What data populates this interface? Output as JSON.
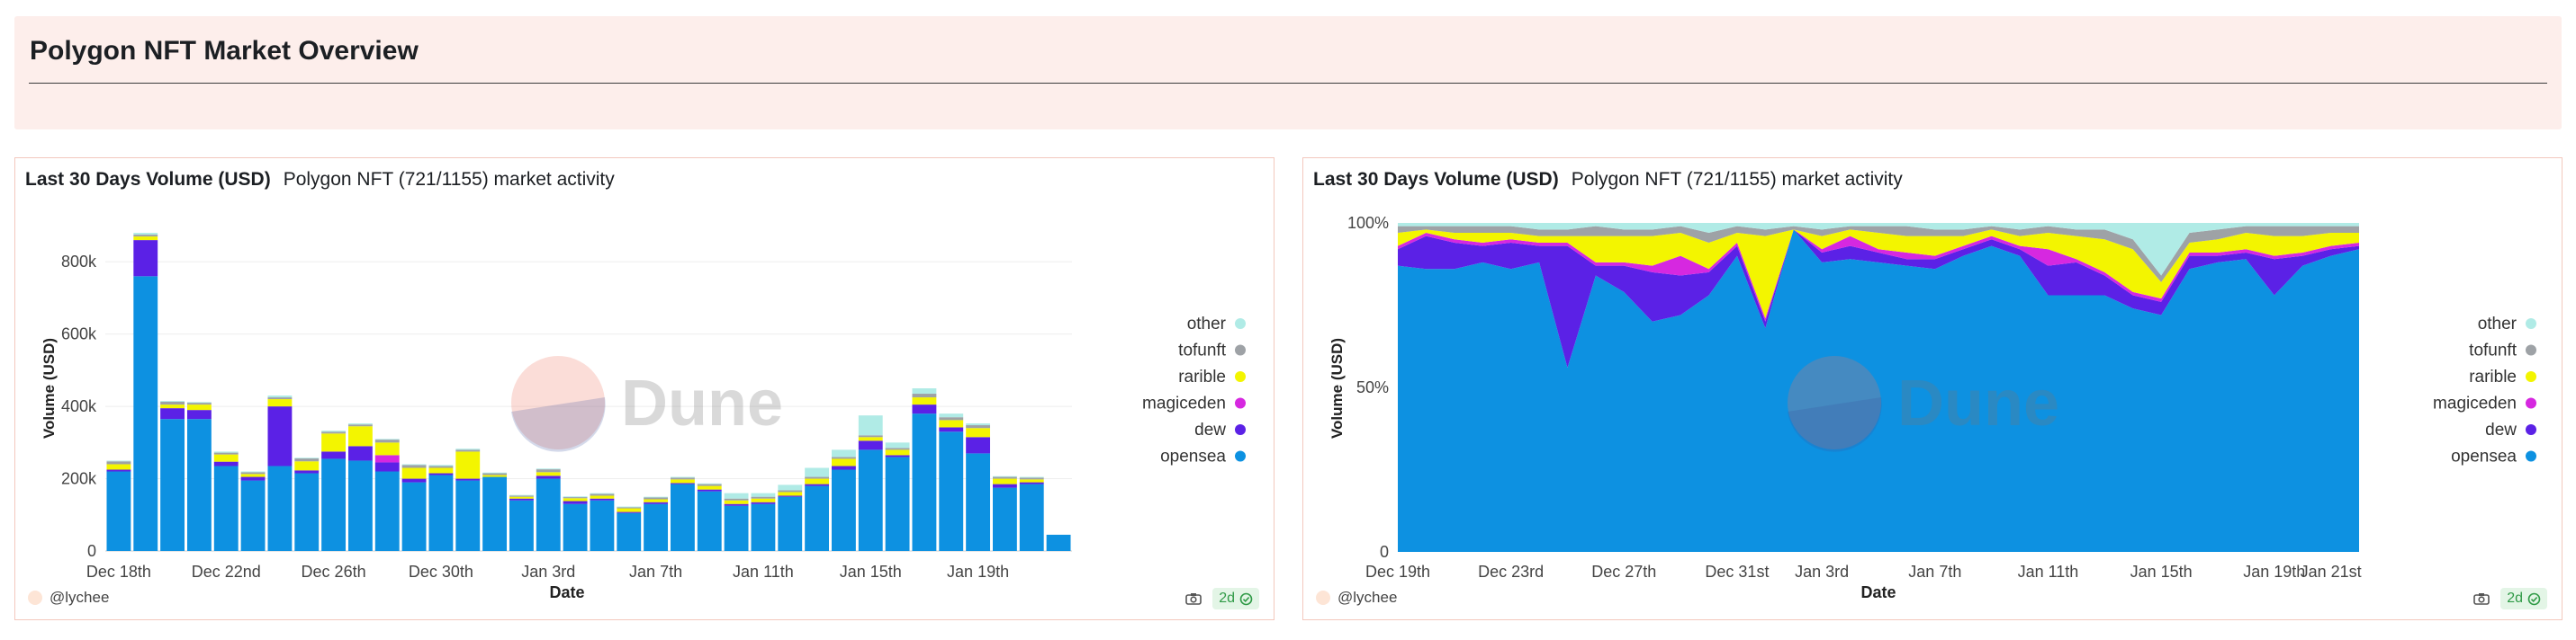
{
  "header": {
    "title": "Polygon NFT Market Overview"
  },
  "colors": {
    "opensea": "#0d91e1",
    "dew": "#5b21e6",
    "magiceden": "#d628e0",
    "rarible": "#f3f500",
    "tofunft": "#9ea2a6",
    "other": "#b0ebe6",
    "header_bg": "#fdeeeb",
    "panel_border": "#f3c8bd"
  },
  "watermark": {
    "text": "Dune"
  },
  "panels": [
    {
      "title": "Last 30 Days Volume (USD)",
      "subtitle": "Polygon NFT (721/1155) market activity",
      "footer_user": "@lychee",
      "badge": "2d"
    },
    {
      "title": "Last 30 Days Volume (USD)",
      "subtitle": "Polygon NFT (721/1155) market activity",
      "footer_user": "@lychee",
      "badge": "2d"
    }
  ],
  "chart_data": [
    {
      "type": "bar",
      "stacked": true,
      "xlabel": "Date",
      "ylabel": "Volume (USD)",
      "ylim": [
        0,
        900000
      ],
      "yticks": [
        0,
        200000,
        400000,
        600000,
        800000
      ],
      "ytick_labels": [
        "0",
        "200k",
        "400k",
        "600k",
        "800k"
      ],
      "xtick_labels": [
        "Dec 18th",
        "Dec 22nd",
        "Dec 26th",
        "Dec 30th",
        "Jan 3rd",
        "Jan 7th",
        "Jan 11th",
        "Jan 15th",
        "Jan 19th"
      ],
      "xtick_index": [
        0,
        4,
        8,
        12,
        16,
        20,
        24,
        28,
        32
      ],
      "legend": [
        "other",
        "tofunft",
        "rarible",
        "magiceden",
        "dew",
        "opensea"
      ],
      "series": [
        {
          "name": "opensea",
          "values": [
            220000,
            760000,
            365000,
            365000,
            235000,
            195000,
            235000,
            215000,
            255000,
            250000,
            220000,
            190000,
            210000,
            195000,
            205000,
            140000,
            200000,
            130000,
            140000,
            105000,
            130000,
            185000,
            165000,
            125000,
            130000,
            150000,
            180000,
            225000,
            280000,
            260000,
            380000,
            330000,
            270000,
            175000,
            185000,
            45000
          ]
        },
        {
          "name": "dew",
          "values": [
            5000,
            100000,
            30000,
            25000,
            12000,
            10000,
            165000,
            8000,
            20000,
            40000,
            25000,
            10000,
            5000,
            5000,
            0,
            5000,
            8000,
            8000,
            5000,
            3000,
            5000,
            3000,
            5000,
            5000,
            5000,
            3000,
            5000,
            10000,
            25000,
            5000,
            25000,
            12000,
            45000,
            10000,
            5000,
            0
          ]
        },
        {
          "name": "magiceden",
          "values": [
            0,
            0,
            0,
            0,
            0,
            0,
            0,
            0,
            0,
            0,
            20000,
            0,
            0,
            0,
            0,
            0,
            0,
            0,
            0,
            0,
            0,
            0,
            0,
            0,
            0,
            0,
            0,
            0,
            0,
            0,
            0,
            0,
            0,
            0,
            0,
            0
          ]
        },
        {
          "name": "rarible",
          "values": [
            15000,
            10000,
            10000,
            15000,
            20000,
            8000,
            20000,
            25000,
            50000,
            55000,
            35000,
            30000,
            15000,
            75000,
            5000,
            5000,
            10000,
            8000,
            8000,
            10000,
            8000,
            10000,
            10000,
            10000,
            10000,
            10000,
            15000,
            20000,
            10000,
            15000,
            20000,
            20000,
            25000,
            15000,
            8000,
            0
          ]
        },
        {
          "name": "tofunft",
          "values": [
            8000,
            5000,
            8000,
            5000,
            5000,
            5000,
            5000,
            8000,
            5000,
            5000,
            8000,
            8000,
            5000,
            5000,
            5000,
            3000,
            8000,
            3000,
            5000,
            3000,
            5000,
            5000,
            5000,
            5000,
            5000,
            5000,
            5000,
            5000,
            5000,
            5000,
            10000,
            8000,
            8000,
            5000,
            5000,
            0
          ]
        },
        {
          "name": "other",
          "values": [
            2000,
            5000,
            2000,
            2000,
            3000,
            2000,
            5000,
            2000,
            3000,
            3000,
            2000,
            2000,
            3000,
            3000,
            2000,
            2000,
            2000,
            2000,
            2000,
            2000,
            2000,
            2000,
            2000,
            15000,
            10000,
            15000,
            25000,
            20000,
            55000,
            15000,
            15000,
            10000,
            5000,
            2000,
            2000,
            0
          ]
        }
      ]
    },
    {
      "type": "area",
      "stacked": true,
      "normalized": true,
      "xlabel": "Date",
      "ylabel": "Volume (USD)",
      "ylim": [
        0,
        100
      ],
      "yticks": [
        0,
        50,
        100
      ],
      "ytick_labels": [
        "0",
        "50%",
        "100%"
      ],
      "xtick_labels": [
        "Dec 19th",
        "Dec 23rd",
        "Dec 27th",
        "Dec 31st",
        "Jan 3rd",
        "Jan 7th",
        "Jan 11th",
        "Jan 15th",
        "Jan 19th",
        "Jan 21st"
      ],
      "xtick_index": [
        0,
        4,
        8,
        12,
        15,
        19,
        23,
        27,
        31,
        33
      ],
      "legend": [
        "other",
        "tofunft",
        "rarible",
        "magiceden",
        "dew",
        "opensea"
      ],
      "series": [
        {
          "name": "opensea",
          "values": [
            87,
            86,
            86,
            88,
            86,
            88,
            56,
            84,
            79,
            70,
            72,
            78,
            90,
            68,
            98,
            88,
            89,
            88,
            87,
            86,
            90,
            93,
            90,
            78,
            78,
            78,
            74,
            72,
            86,
            88,
            89,
            78,
            87,
            90,
            92
          ]
        },
        {
          "name": "dew",
          "values": [
            5,
            10,
            8,
            5,
            8,
            5,
            37,
            3,
            8,
            15,
            12,
            7,
            3,
            2,
            0,
            3,
            4,
            3,
            2,
            3,
            2,
            2,
            2,
            9,
            10,
            6,
            4,
            4,
            4,
            2,
            2,
            11,
            3,
            2,
            1
          ]
        },
        {
          "name": "magiceden",
          "values": [
            1,
            1,
            1,
            1,
            1,
            1,
            1,
            1,
            1,
            2,
            6,
            1,
            1,
            1,
            0,
            1,
            3,
            1,
            2,
            1,
            1,
            1,
            1,
            5,
            1,
            1,
            1,
            1,
            1,
            1,
            1,
            1,
            1,
            1,
            1
          ]
        },
        {
          "name": "rarible",
          "values": [
            4,
            1,
            2,
            3,
            2,
            2,
            2,
            8,
            8,
            9,
            7,
            8,
            3,
            25,
            0,
            4,
            2,
            5,
            5,
            6,
            3,
            2,
            3,
            5,
            7,
            10,
            13,
            5,
            3,
            4,
            5,
            6,
            5,
            4,
            3
          ]
        },
        {
          "name": "tofunft",
          "values": [
            2,
            1,
            2,
            2,
            2,
            2,
            2,
            3,
            2,
            2,
            2,
            3,
            2,
            2,
            1,
            2,
            1,
            2,
            3,
            2,
            2,
            1,
            2,
            2,
            2,
            3,
            3,
            2,
            3,
            3,
            2,
            3,
            3,
            2,
            2
          ]
        },
        {
          "name": "other",
          "values": [
            1,
            1,
            1,
            1,
            1,
            2,
            2,
            1,
            2,
            2,
            1,
            3,
            1,
            2,
            1,
            2,
            1,
            1,
            1,
            2,
            2,
            1,
            2,
            1,
            2,
            2,
            5,
            16,
            3,
            2,
            1,
            1,
            1,
            1,
            1
          ]
        }
      ]
    }
  ]
}
